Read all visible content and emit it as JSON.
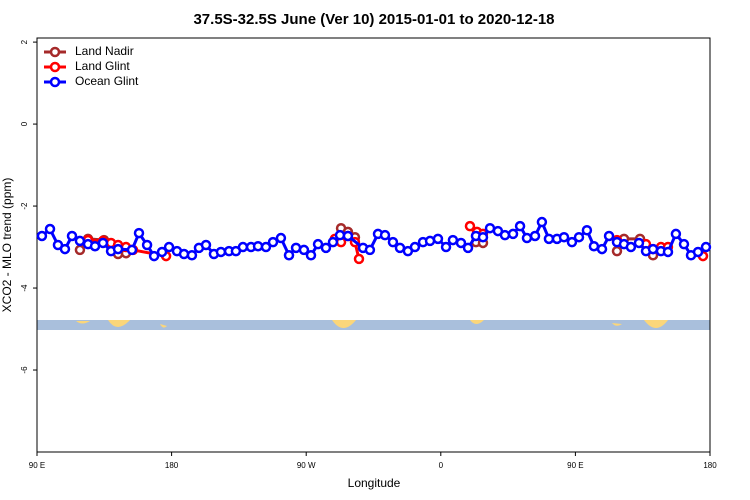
{
  "chart_data": {
    "type": "line",
    "title": "37.5S-32.5S June (Ver 10)   2015-01-01 to 2020-12-18",
    "xlabel": "Longitude",
    "ylabel": "XCO2 - MLO trend (ppm)",
    "xlim": [
      90,
      540
    ],
    "ylim": [
      -8,
      2.1
    ],
    "xticks": [
      {
        "value": 90,
        "label": "90 E"
      },
      {
        "value": 180,
        "label": "180"
      },
      {
        "value": 270,
        "label": "90 W"
      },
      {
        "value": 360,
        "label": "0"
      },
      {
        "value": 450,
        "label": "90 E"
      },
      {
        "value": 540,
        "label": "180"
      }
    ],
    "yticks": [
      2,
      0,
      -2,
      -4,
      -6
    ],
    "legend": "upper left",
    "series": [
      {
        "name": "Land Nadir",
        "color": "#a52a2a",
        "x": [
          118.7,
          124.1,
          134.8,
          144.2,
          149.5,
          null,
          293.3,
          297.9,
          302.6,
          null,
          383.5,
          388.2,
          null,
          477.8,
          482.5,
          493.2,
          501.9
        ],
        "values": [
          -3.07,
          -2.8,
          -2.83,
          -3.17,
          -3.15,
          null,
          -2.54,
          -2.63,
          -2.76,
          null,
          -2.88,
          -2.9,
          null,
          -3.1,
          -2.8,
          -2.8,
          -3.2
        ]
      },
      {
        "name": "Land Glint",
        "color": "#ff0000",
        "x": [
          124.1,
          134.1,
          139.5,
          144.2,
          149.5,
          154.2,
          176.3,
          null,
          289.2,
          293.3,
          297.9,
          302.6,
          305.3,
          null,
          379.5,
          384.2,
          388.2,
          null,
          477.8,
          null,
          497.2,
          501.9,
          507.2,
          511.9,
          null,
          535.3
        ],
        "values": [
          -2.83,
          -2.85,
          -2.9,
          -2.95,
          -3.0,
          -3.07,
          -3.22,
          null,
          -2.8,
          -2.88,
          -2.73,
          -2.88,
          -3.29,
          null,
          -2.49,
          -2.63,
          -2.68,
          null,
          -2.83,
          null,
          -2.93,
          -3.05,
          -3.0,
          -3.0,
          null,
          -3.22
        ]
      },
      {
        "name": "Ocean Glint",
        "color": "#0000ff",
        "x": [
          93.3,
          98.7,
          104.0,
          108.7,
          113.4,
          118.7,
          124.1,
          128.8,
          134.1,
          139.5,
          144.2,
          153.5,
          158.2,
          163.6,
          168.3,
          173.6,
          178.3,
          183.6,
          188.3,
          193.6,
          198.3,
          203.0,
          208.3,
          213.0,
          218.4,
          223.0,
          227.7,
          233.1,
          237.8,
          243.1,
          247.8,
          253.1,
          258.5,
          263.2,
          268.5,
          273.2,
          277.9,
          283.2,
          287.9,
          292.6,
          297.9,
          308.0,
          312.6,
          318.0,
          322.7,
          328.0,
          332.7,
          338.0,
          342.7,
          348.1,
          352.8,
          358.1,
          363.5,
          368.1,
          373.5,
          378.2,
          383.5,
          388.2,
          392.9,
          398.2,
          402.9,
          408.3,
          413.0,
          417.6,
          423.0,
          427.6,
          432.3,
          437.7,
          442.4,
          447.7,
          452.4,
          457.7,
          462.4,
          467.8,
          472.5,
          477.8,
          482.5,
          487.1,
          492.5,
          497.2,
          501.9,
          507.2,
          511.9,
          517.2,
          522.6,
          527.3,
          532.0,
          537.3
        ],
        "values": [
          -2.73,
          -2.56,
          -2.95,
          -3.05,
          -2.73,
          -2.85,
          -2.93,
          -2.98,
          -2.9,
          -3.1,
          -3.05,
          -3.07,
          -2.66,
          -2.95,
          -3.22,
          -3.12,
          -3.0,
          -3.1,
          -3.17,
          -3.2,
          -3.02,
          -2.95,
          -3.17,
          -3.12,
          -3.1,
          -3.1,
          -3.0,
          -3.0,
          -2.98,
          -3.0,
          -2.88,
          -2.78,
          -3.2,
          -3.02,
          -3.07,
          -3.2,
          -2.93,
          -3.02,
          -2.88,
          -2.71,
          -2.73,
          -3.02,
          -3.07,
          -2.68,
          -2.71,
          -2.88,
          -3.02,
          -3.1,
          -3.0,
          -2.88,
          -2.85,
          -2.8,
          -3.0,
          -2.83,
          -2.9,
          -3.02,
          -2.73,
          -2.76,
          -2.54,
          -2.61,
          -2.71,
          -2.68,
          -2.49,
          -2.78,
          -2.73,
          -2.39,
          -2.8,
          -2.8,
          -2.76,
          -2.88,
          -2.76,
          -2.59,
          -2.98,
          -3.05,
          -2.73,
          -2.88,
          -2.93,
          -3.0,
          -2.9,
          -3.1,
          -3.05,
          -3.1,
          -3.12,
          -2.68,
          -2.93,
          -3.2,
          -3.12,
          -3.0
        ]
      }
    ]
  }
}
